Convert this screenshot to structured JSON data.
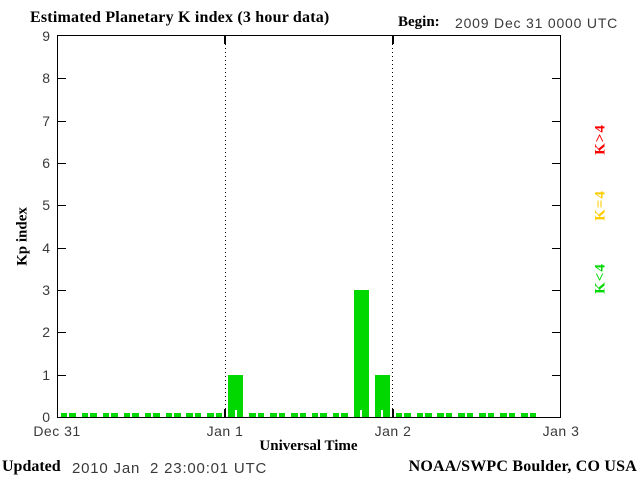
{
  "header": {
    "title": "Estimated Planetary K index (3 hour data)",
    "begin_label": "Begin:",
    "begin_value": "2009 Dec 31 0000 UTC"
  },
  "chart_data": {
    "type": "bar",
    "title": "Estimated Planetary K index (3 hour data)",
    "xlabel": "Universal Time",
    "ylabel": "Kp index",
    "ylim": [
      0,
      9
    ],
    "ytick_labels": [
      "0",
      "1",
      "2",
      "3",
      "4",
      "5",
      "6",
      "7",
      "8",
      "9"
    ],
    "xtick_labels": [
      "Dec 31",
      "Jan 1",
      "Jan 2",
      "Jan 3"
    ],
    "begin": "2009 Dec 31 0000 UTC",
    "interval_hours": 3,
    "grid": "dotted vertical lines at day boundaries",
    "x_slot_start_times": [
      "Dec 31 0000",
      "Dec 31 0300",
      "Dec 31 0600",
      "Dec 31 0900",
      "Dec 31 1200",
      "Dec 31 1500",
      "Dec 31 1800",
      "Dec 31 2100",
      "Jan 1 0000",
      "Jan 1 0300",
      "Jan 1 0600",
      "Jan 1 0900",
      "Jan 1 1200",
      "Jan 1 1500",
      "Jan 1 1800",
      "Jan 1 2100",
      "Jan 2 0000",
      "Jan 2 0300",
      "Jan 2 0600",
      "Jan 2 0900",
      "Jan 2 1200",
      "Jan 2 1500",
      "Jan 2 1800",
      "Jan 2 2100"
    ],
    "values": [
      0,
      0,
      0,
      0,
      0,
      0,
      0,
      0,
      1,
      0,
      0,
      0,
      0,
      0,
      3,
      1,
      0,
      0,
      0,
      0,
      0,
      0,
      0,
      null
    ],
    "value_colors": {
      "k_lt_4": "#00d800",
      "k_eq_4": "#ffcc00",
      "k_gt_4": "#ff0000"
    },
    "legend": [
      {
        "label": "K>4",
        "color": "#ff0000"
      },
      {
        "label": "K=4",
        "color": "#ffcc00"
      },
      {
        "label": "K<4",
        "color": "#00d800"
      }
    ],
    "legend_position": "right, rotated 90deg"
  },
  "footer": {
    "updated_label": "Updated",
    "updated_value": "2010 Jan  2 23:00:01 UTC",
    "credit": "NOAA/SWPC Boulder, CO USA"
  }
}
